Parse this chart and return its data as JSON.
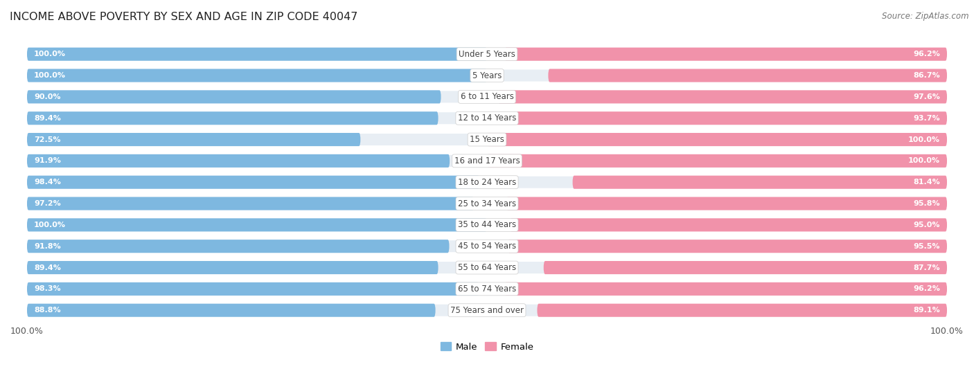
{
  "title": "INCOME ABOVE POVERTY BY SEX AND AGE IN ZIP CODE 40047",
  "source": "Source: ZipAtlas.com",
  "categories": [
    "Under 5 Years",
    "5 Years",
    "6 to 11 Years",
    "12 to 14 Years",
    "15 Years",
    "16 and 17 Years",
    "18 to 24 Years",
    "25 to 34 Years",
    "35 to 44 Years",
    "45 to 54 Years",
    "55 to 64 Years",
    "65 to 74 Years",
    "75 Years and over"
  ],
  "male_values": [
    100.0,
    100.0,
    90.0,
    89.4,
    72.5,
    91.9,
    98.4,
    97.2,
    100.0,
    91.8,
    89.4,
    98.3,
    88.8
  ],
  "female_values": [
    96.2,
    86.7,
    97.6,
    93.7,
    100.0,
    100.0,
    81.4,
    95.8,
    95.0,
    95.5,
    87.7,
    96.2,
    89.1
  ],
  "male_color": "#7eb8e0",
  "female_color": "#f192aa",
  "male_label": "Male",
  "female_label": "Female",
  "background_color": "#ffffff",
  "bar_bg_color": "#e8eef4",
  "title_fontsize": 11.5,
  "source_fontsize": 8.5,
  "label_fontsize": 8.0,
  "tick_fontsize": 9,
  "cat_fontsize": 8.5
}
